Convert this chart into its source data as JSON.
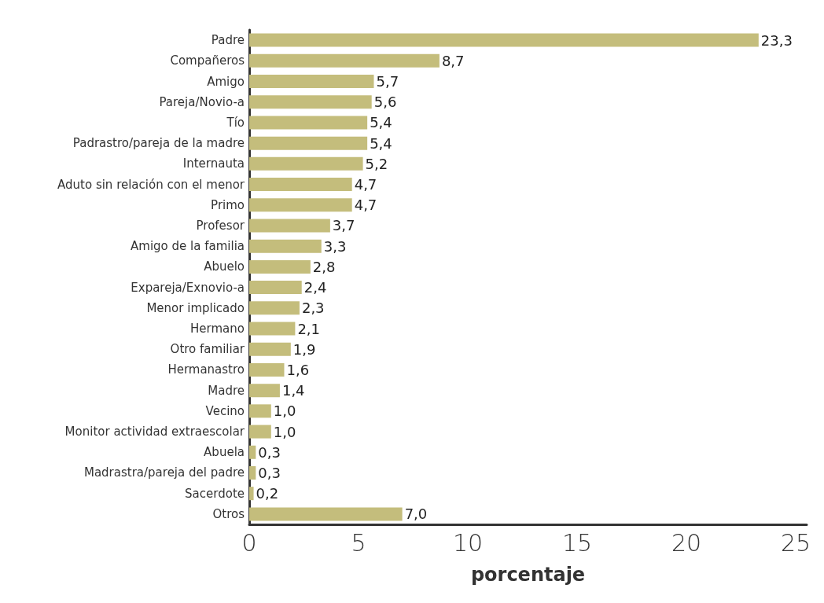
{
  "chart_data": {
    "type": "bar",
    "orientation": "horizontal",
    "xlabel": "porcentaje",
    "categories": [
      "Padre",
      "Compañeros",
      "Amigo",
      "Pareja/Novio-a",
      "Tío",
      "Padrastro/pareja de la madre",
      "Internauta",
      "Aduto sin relación con el menor",
      "Primo",
      "Profesor",
      "Amigo de la familia",
      "Abuelo",
      "Expareja/Exnovio-a",
      "Menor implicado",
      "Hermano",
      "Otro familiar",
      "Hermanastro",
      "Madre",
      "Vecino",
      "Monitor actividad extraescolar",
      "Abuela",
      "Madrastra/pareja del padre",
      "Sacerdote",
      "Otros"
    ],
    "values": [
      23.3,
      8.7,
      5.7,
      5.6,
      5.4,
      5.4,
      5.2,
      4.7,
      4.7,
      3.7,
      3.3,
      2.8,
      2.4,
      2.3,
      2.1,
      1.9,
      1.6,
      1.4,
      1.0,
      1.0,
      0.3,
      0.3,
      0.2,
      7.0
    ],
    "value_labels": [
      "23,3",
      "8,7",
      "5,7",
      "5,6",
      "5,4",
      "5,4",
      "5,2",
      "4,7",
      "4,7",
      "3,7",
      "3,3",
      "2,8",
      "2,4",
      "2,3",
      "2,1",
      "1,9",
      "1,6",
      "1,4",
      "1,0",
      "1,0",
      "0,3",
      "0,3",
      "0,2",
      "7,0"
    ],
    "color": "#c4bd7c",
    "xlim": [
      0,
      25.5
    ],
    "xticks": [
      0,
      5,
      10,
      15,
      20,
      25
    ],
    "grid": false
  }
}
